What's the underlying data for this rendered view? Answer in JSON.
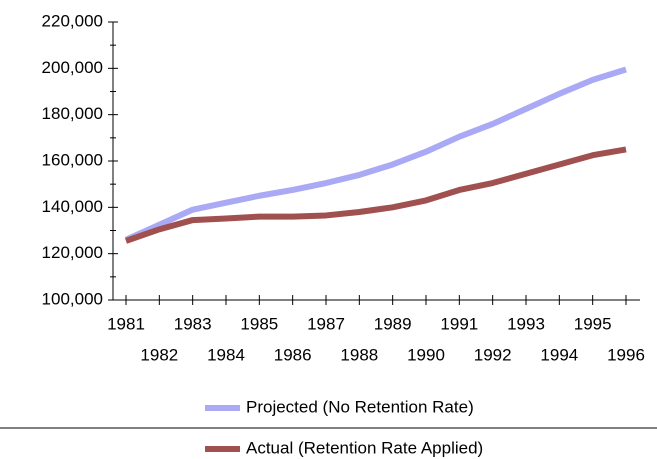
{
  "chart_data": {
    "type": "line",
    "categories": [
      "1981",
      "1982",
      "1983",
      "1984",
      "1985",
      "1986",
      "1987",
      "1988",
      "1989",
      "1990",
      "1991",
      "1992",
      "1993",
      "1994",
      "1995",
      "1996"
    ],
    "series": [
      {
        "name": "Projected (No Retention Rate)",
        "color": "#a9a9f5",
        "values": [
          126000,
          132500,
          139000,
          142000,
          145000,
          147500,
          150500,
          154000,
          158500,
          164000,
          170500,
          176000,
          182500,
          189000,
          195000,
          199500
        ]
      },
      {
        "name": "Actual (Retention Rate Applied)",
        "color": "#a0504f",
        "values": [
          125500,
          130500,
          134500,
          135200,
          136000,
          136000,
          136500,
          138000,
          140000,
          143000,
          147500,
          150500,
          154500,
          158500,
          162500,
          165000
        ]
      }
    ],
    "ylim": [
      100000,
      220000
    ],
    "yticks": [
      {
        "value": 100000,
        "label": "100,000"
      },
      {
        "value": 120000,
        "label": "120,000"
      },
      {
        "value": 140000,
        "label": "140,000"
      },
      {
        "value": 160000,
        "label": "160,000"
      },
      {
        "value": 180000,
        "label": "180,000"
      },
      {
        "value": 200000,
        "label": "200,000"
      },
      {
        "value": 220000,
        "label": "220,000"
      }
    ],
    "grid": false
  }
}
